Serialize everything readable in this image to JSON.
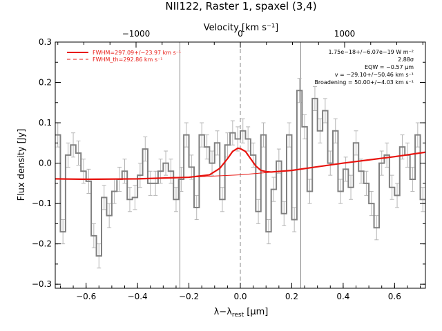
{
  "chart_data": {
    "type": "line",
    "title": "NII122, Raster 1, spaxel (3,4)",
    "xlabel": "λ−λ",
    "xlabel_sub": "rest",
    "xlabel_unit": " [μm]",
    "ylabel": "Flux density [Jy]",
    "top_axis_label": "Velocity [km s⁻¹]",
    "xlim": [
      -0.72,
      0.72
    ],
    "ylim": [
      -0.31,
      0.3
    ],
    "x_ticks": [
      -0.6,
      -0.4,
      -0.2,
      0.0,
      0.2,
      0.4,
      0.6
    ],
    "x_tick_labels": [
      "−0.6",
      "−0.4",
      "−0.2",
      "0.0",
      "0.2",
      "0.4",
      "0.6"
    ],
    "y_ticks": [
      -0.3,
      -0.2,
      -0.1,
      0.0,
      0.1,
      0.2,
      0.3
    ],
    "y_tick_labels": [
      "−0.3",
      "−0.2",
      "−0.1",
      "0.0",
      "0.1",
      "0.2",
      "0.3"
    ],
    "top_ticks": [
      -1000,
      0,
      1000
    ],
    "top_tick_labels": [
      "−1000",
      "0",
      "1000"
    ],
    "top_tick_positions_um": [
      -0.4057,
      0.0,
      0.4057
    ],
    "vlines": [
      -0.235,
      0.0,
      0.235
    ],
    "legend": [
      {
        "label": "FWHM=297.09+/−23.97 km s⁻¹",
        "style": "solid",
        "color": "#e8140f"
      },
      {
        "label": "FWHM_th=292.86 km s⁻¹",
        "style": "dashed",
        "color": "#e8140f"
      }
    ],
    "annotations": [
      "1.75e−18+/−6.07e−19 W m⁻²",
      "2.88σ",
      "EQW = −0.57 μm",
      "v = −29.10+/−50.46 km s⁻¹",
      "Broadening = 50.00+/−4.03 km s⁻¹"
    ],
    "series": [
      {
        "style": "steps",
        "color": "#808080",
        "x": [
          -0.71,
          -0.69,
          -0.67,
          -0.65,
          -0.63,
          -0.61,
          -0.59,
          -0.57,
          -0.55,
          -0.53,
          -0.51,
          -0.49,
          -0.47,
          -0.45,
          -0.43,
          -0.41,
          -0.39,
          -0.37,
          -0.35,
          -0.33,
          -0.31,
          -0.29,
          -0.27,
          -0.25,
          -0.23,
          -0.21,
          -0.19,
          -0.17,
          -0.15,
          -0.13,
          -0.11,
          -0.09,
          -0.07,
          -0.05,
          -0.03,
          -0.01,
          0.01,
          0.03,
          0.05,
          0.07,
          0.09,
          0.11,
          0.13,
          0.15,
          0.17,
          0.19,
          0.21,
          0.23,
          0.25,
          0.27,
          0.29,
          0.31,
          0.33,
          0.35,
          0.37,
          0.39,
          0.41,
          0.43,
          0.45,
          0.47,
          0.49,
          0.51,
          0.53,
          0.55,
          0.57,
          0.59,
          0.61,
          0.63,
          0.65,
          0.67,
          0.69,
          0.71
        ],
        "y": [
          0.07,
          -0.17,
          0.02,
          0.045,
          0.025,
          -0.02,
          -0.045,
          -0.18,
          -0.23,
          -0.085,
          -0.13,
          -0.07,
          -0.04,
          -0.02,
          -0.09,
          -0.085,
          -0.03,
          0.035,
          -0.05,
          -0.05,
          -0.02,
          0.0,
          -0.02,
          -0.09,
          -0.04,
          0.07,
          -0.01,
          -0.11,
          0.07,
          0.04,
          0.0,
          0.05,
          -0.09,
          0.045,
          0.075,
          0.06,
          0.08,
          0.06,
          0.02,
          -0.12,
          0.07,
          -0.17,
          -0.065,
          0.005,
          -0.125,
          0.07,
          -0.14,
          0.18,
          0.09,
          -0.07,
          0.16,
          0.08,
          0.13,
          0.0,
          0.08,
          -0.07,
          -0.015,
          -0.06,
          0.05,
          -0.02,
          -0.05,
          -0.1,
          -0.16,
          0.0,
          0.02,
          -0.06,
          -0.08,
          0.04,
          0.02,
          -0.04,
          0.07,
          -0.09
        ]
      },
      {
        "style": "line",
        "color": "#e8140f",
        "label": "fit",
        "x": [
          -0.72,
          -0.6,
          -0.4,
          -0.2,
          -0.12,
          -0.08,
          -0.05,
          -0.03,
          -0.01,
          0.0,
          0.02,
          0.04,
          0.06,
          0.08,
          0.1,
          0.12,
          0.2,
          0.3,
          0.4,
          0.5,
          0.6,
          0.72
        ],
        "y": [
          -0.039,
          -0.04,
          -0.039,
          -0.035,
          -0.029,
          -0.013,
          0.011,
          0.029,
          0.037,
          0.036,
          0.029,
          0.011,
          -0.007,
          -0.018,
          -0.021,
          -0.022,
          -0.018,
          -0.009,
          0.0,
          0.008,
          0.016,
          0.027
        ]
      },
      {
        "style": "line-thin",
        "color": "#e8140f",
        "label": "baseline",
        "x": [
          -0.72,
          -0.4,
          -0.2,
          0.0,
          0.2,
          0.4,
          0.6,
          0.72
        ],
        "y": [
          -0.039,
          -0.039,
          -0.035,
          -0.029,
          -0.018,
          0.0,
          0.016,
          0.027
        ]
      }
    ]
  }
}
